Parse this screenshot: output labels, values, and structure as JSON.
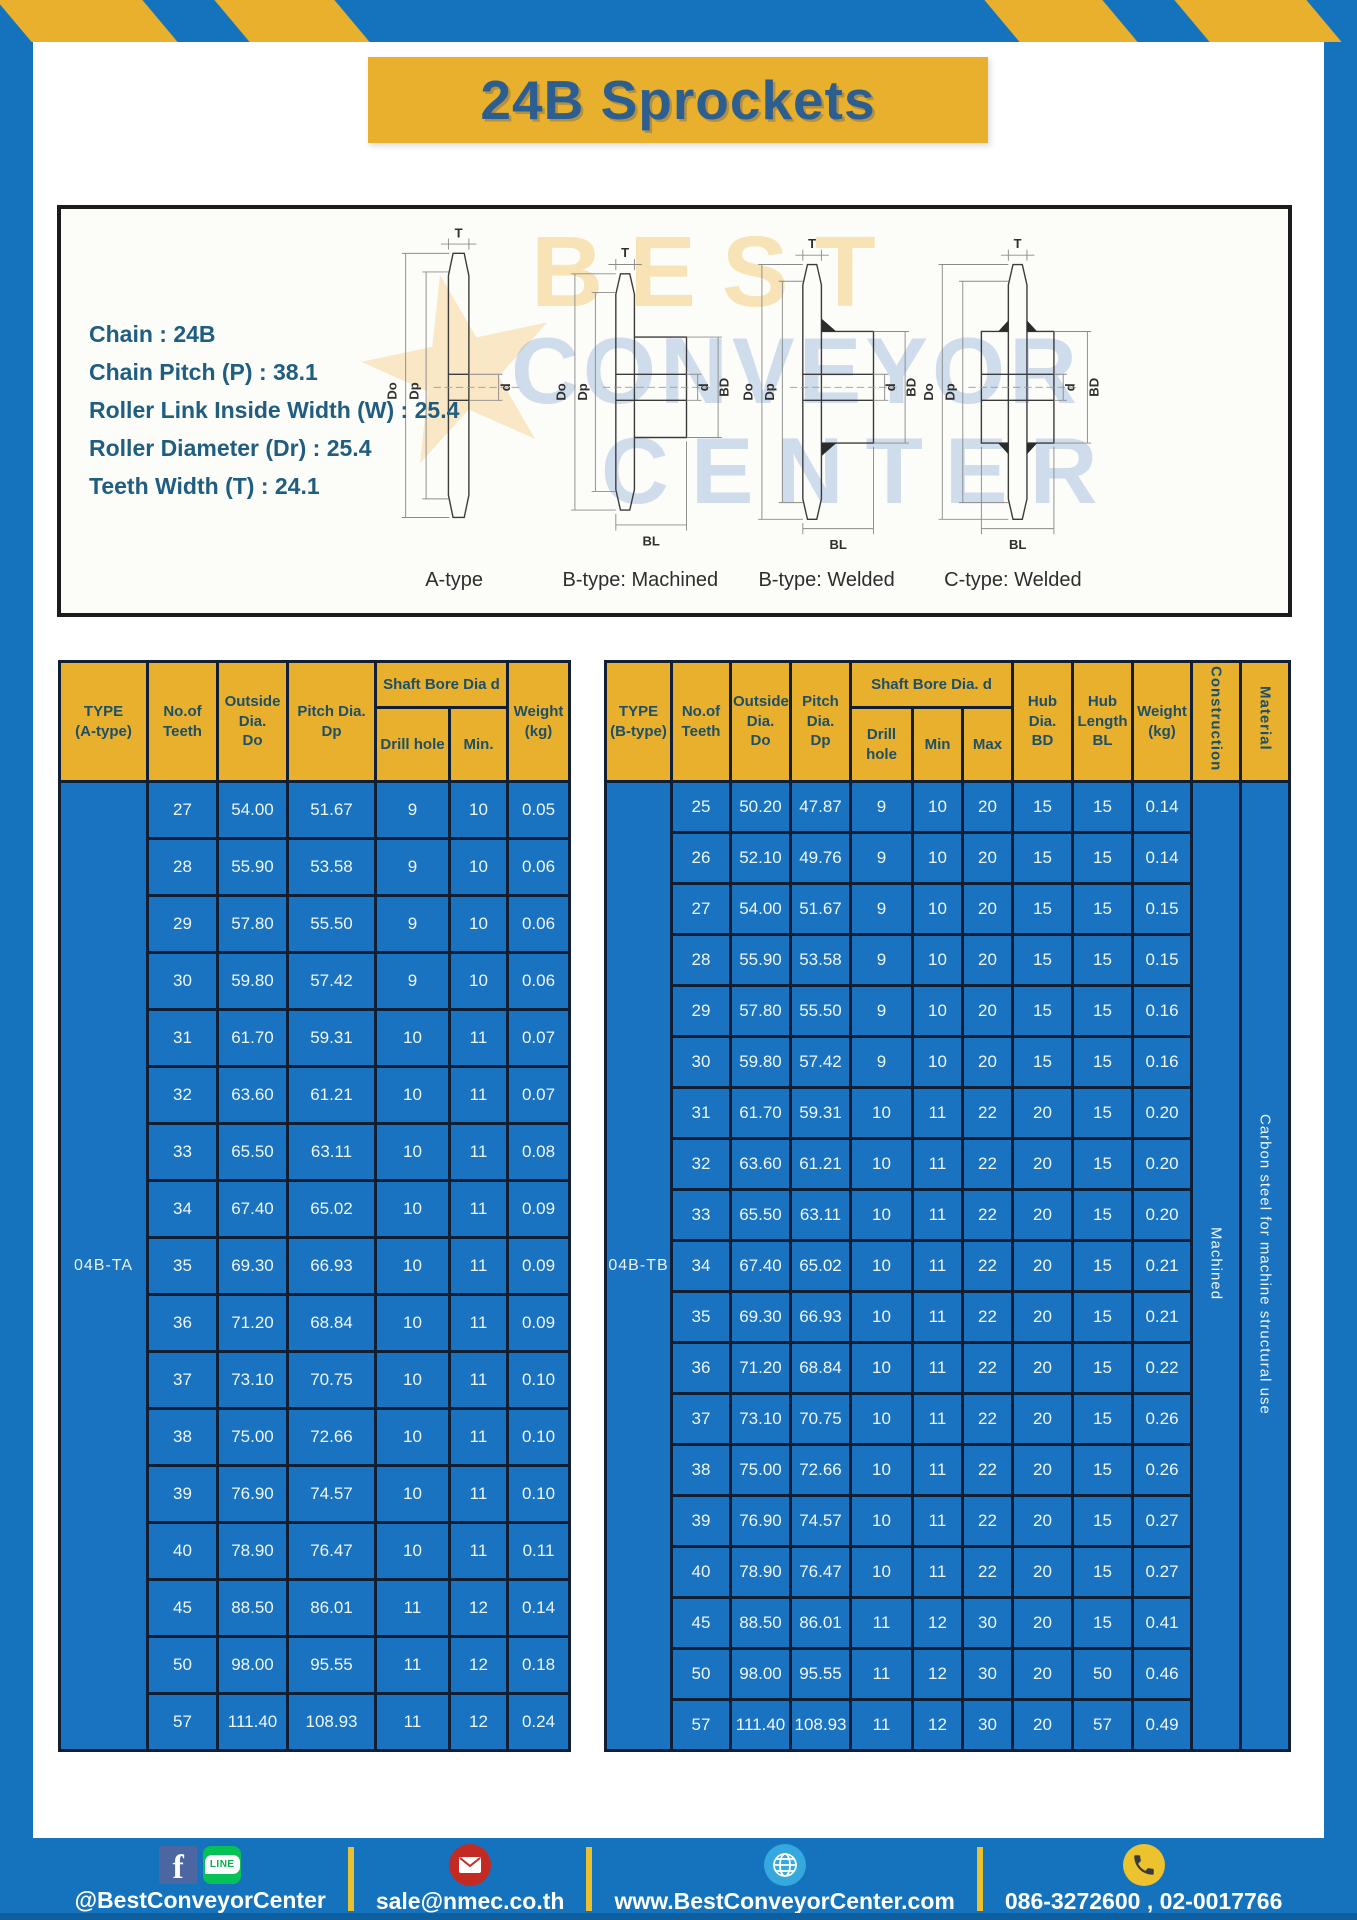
{
  "page": {
    "title": "24B Sprockets"
  },
  "specs": {
    "lines": [
      "Chain : 24B",
      "Chain Pitch (P) : 38.1",
      "Roller Link Inside Width (W) : 25.4",
      "Roller Diameter (Dr) : 25.4",
      "Teeth Width (T) : 24.1"
    ]
  },
  "watermark": {
    "star": "★",
    "lines": [
      "BEST",
      "CONVEYOR",
      "CENTER"
    ]
  },
  "diagrams": {
    "captions": [
      "A-type",
      "B-type: Machined",
      "B-type: Welded",
      "C-type: Welded"
    ],
    "labels": {
      "t": "T",
      "outside": "Do",
      "pitch": "Dp",
      "bore": "d",
      "hub_dia": "BD",
      "hub_len": "BL"
    }
  },
  "table_a": {
    "headers": {
      "type": "TYPE\n(A-type)",
      "teeth": "No.of\nTeeth",
      "outside": "Outside\nDia.\nDo",
      "pitch": "Pitch Dia.\nDp",
      "bore_group": "Shaft Bore Dia d",
      "drill": "Drill hole",
      "min": "Min.",
      "weight": "Weight\n(kg)"
    },
    "type_label": "04B-TA",
    "rows": [
      [
        "27",
        "54.00",
        "51.67",
        "9",
        "10",
        "0.05"
      ],
      [
        "28",
        "55.90",
        "53.58",
        "9",
        "10",
        "0.06"
      ],
      [
        "29",
        "57.80",
        "55.50",
        "9",
        "10",
        "0.06"
      ],
      [
        "30",
        "59.80",
        "57.42",
        "9",
        "10",
        "0.06"
      ],
      [
        "31",
        "61.70",
        "59.31",
        "10",
        "11",
        "0.07"
      ],
      [
        "32",
        "63.60",
        "61.21",
        "10",
        "11",
        "0.07"
      ],
      [
        "33",
        "65.50",
        "63.11",
        "10",
        "11",
        "0.08"
      ],
      [
        "34",
        "67.40",
        "65.02",
        "10",
        "11",
        "0.09"
      ],
      [
        "35",
        "69.30",
        "66.93",
        "10",
        "11",
        "0.09"
      ],
      [
        "36",
        "71.20",
        "68.84",
        "10",
        "11",
        "0.09"
      ],
      [
        "37",
        "73.10",
        "70.75",
        "10",
        "11",
        "0.10"
      ],
      [
        "38",
        "75.00",
        "72.66",
        "10",
        "11",
        "0.10"
      ],
      [
        "39",
        "76.90",
        "74.57",
        "10",
        "11",
        "0.10"
      ],
      [
        "40",
        "78.90",
        "76.47",
        "10",
        "11",
        "0.11"
      ],
      [
        "45",
        "88.50",
        "86.01",
        "11",
        "12",
        "0.14"
      ],
      [
        "50",
        "98.00",
        "95.55",
        "11",
        "12",
        "0.18"
      ],
      [
        "57",
        "111.40",
        "108.93",
        "11",
        "12",
        "0.24"
      ]
    ]
  },
  "table_b": {
    "headers": {
      "type": "TYPE\n(B-type)",
      "teeth": "No.of\nTeeth",
      "outside": "Outside\nDia.\nDo",
      "pitch": "Pitch\nDia.\nDp",
      "bore_group": "Shaft Bore Dia.  d",
      "drill": "Drill hole",
      "min": "Min",
      "max": "Max",
      "hub_dia": "Hub\nDia.\nBD",
      "hub_len": "Hub\nLength\nBL",
      "weight": "Weight\n(kg)",
      "construction": "Construction",
      "material": "Material"
    },
    "type_label": "04B-TB",
    "construction": "Machined",
    "material": "Carbon steel for machine structural use",
    "rows": [
      [
        "25",
        "50.20",
        "47.87",
        "9",
        "10",
        "20",
        "15",
        "15",
        "0.14"
      ],
      [
        "26",
        "52.10",
        "49.76",
        "9",
        "10",
        "20",
        "15",
        "15",
        "0.14"
      ],
      [
        "27",
        "54.00",
        "51.67",
        "9",
        "10",
        "20",
        "15",
        "15",
        "0.15"
      ],
      [
        "28",
        "55.90",
        "53.58",
        "9",
        "10",
        "20",
        "15",
        "15",
        "0.15"
      ],
      [
        "29",
        "57.80",
        "55.50",
        "9",
        "10",
        "20",
        "15",
        "15",
        "0.16"
      ],
      [
        "30",
        "59.80",
        "57.42",
        "9",
        "10",
        "20",
        "15",
        "15",
        "0.16"
      ],
      [
        "31",
        "61.70",
        "59.31",
        "10",
        "11",
        "22",
        "20",
        "15",
        "0.20"
      ],
      [
        "32",
        "63.60",
        "61.21",
        "10",
        "11",
        "22",
        "20",
        "15",
        "0.20"
      ],
      [
        "33",
        "65.50",
        "63.11",
        "10",
        "11",
        "22",
        "20",
        "15",
        "0.20"
      ],
      [
        "34",
        "67.40",
        "65.02",
        "10",
        "11",
        "22",
        "20",
        "15",
        "0.21"
      ],
      [
        "35",
        "69.30",
        "66.93",
        "10",
        "11",
        "22",
        "20",
        "15",
        "0.21"
      ],
      [
        "36",
        "71.20",
        "68.84",
        "10",
        "11",
        "22",
        "20",
        "15",
        "0.22"
      ],
      [
        "37",
        "73.10",
        "70.75",
        "10",
        "11",
        "22",
        "20",
        "15",
        "0.26"
      ],
      [
        "38",
        "75.00",
        "72.66",
        "10",
        "11",
        "22",
        "20",
        "15",
        "0.26"
      ],
      [
        "39",
        "76.90",
        "74.57",
        "10",
        "11",
        "22",
        "20",
        "15",
        "0.27"
      ],
      [
        "40",
        "78.90",
        "76.47",
        "10",
        "11",
        "22",
        "20",
        "15",
        "0.27"
      ],
      [
        "45",
        "88.50",
        "86.01",
        "11",
        "12",
        "30",
        "20",
        "15",
        "0.41"
      ],
      [
        "50",
        "98.00",
        "95.55",
        "11",
        "12",
        "30",
        "20",
        "50",
        "0.46"
      ],
      [
        "57",
        "111.40",
        "108.93",
        "11",
        "12",
        "30",
        "20",
        "57",
        "0.49"
      ]
    ]
  },
  "footer": {
    "social": "@BestConveyorCenter",
    "email": "sale@nmec.co.th",
    "website": "www.BestConveyorCenter.com",
    "phone": "086-3272600 , 02-0017766",
    "facebook_letter": "f",
    "line_badge": "LINE",
    "icons": [
      "facebook-icon",
      "line-icon",
      "mail-icon",
      "globe-icon",
      "phone-icon"
    ]
  },
  "colors": {
    "frame_blue": "#1473bc",
    "accent_yellow": "#e9b02d",
    "cell_blue": "#1a73c0",
    "header_text": "#1d4f66",
    "title_text": "#2d5e90",
    "border_dark": "#101f33",
    "footer_strip": "#0e5fa0"
  }
}
